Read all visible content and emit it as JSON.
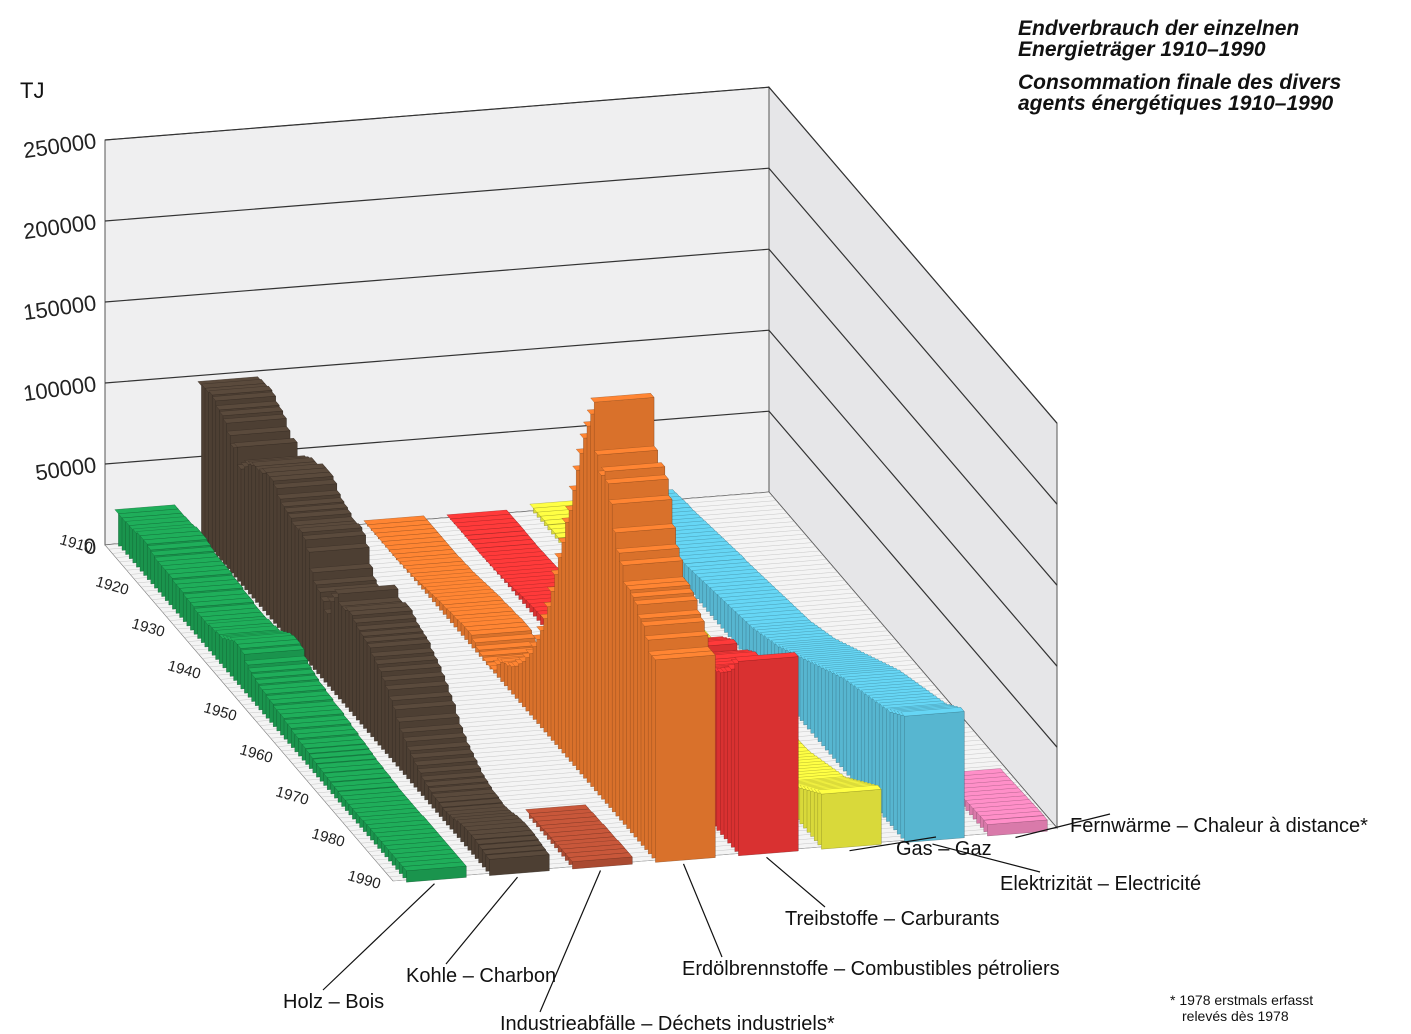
{
  "title": {
    "de_line1": "Endverbrauch der einzelnen",
    "de_line2": "Energieträger 1910–1990",
    "fr_line1": "Consommation finale des divers",
    "fr_line2": "agents énergétiques 1910–1990"
  },
  "footnote": {
    "line1": "* 1978 erstmals erfasst",
    "line2": "relevés dès 1978"
  },
  "chart_data": {
    "type": "bar",
    "variant": "3d-stacked-rows",
    "ylabel": "TJ",
    "ylim": [
      0,
      250000
    ],
    "yticks": [
      "0",
      "50000",
      "100000",
      "150000",
      "200000",
      "250000"
    ],
    "year_ticks": [
      "1910",
      "1920",
      "1930",
      "1940",
      "1950",
      "1960",
      "1970",
      "1980",
      "1990"
    ],
    "categories": [
      1910,
      1911,
      1912,
      1913,
      1914,
      1915,
      1916,
      1917,
      1918,
      1919,
      1920,
      1921,
      1922,
      1923,
      1924,
      1925,
      1926,
      1927,
      1928,
      1929,
      1930,
      1931,
      1932,
      1933,
      1934,
      1935,
      1936,
      1937,
      1938,
      1939,
      1940,
      1941,
      1942,
      1943,
      1944,
      1945,
      1946,
      1947,
      1948,
      1949,
      1950,
      1951,
      1952,
      1953,
      1954,
      1955,
      1956,
      1957,
      1958,
      1959,
      1960,
      1961,
      1962,
      1963,
      1964,
      1965,
      1966,
      1967,
      1968,
      1969,
      1970,
      1971,
      1972,
      1973,
      1974,
      1975,
      1976,
      1977,
      1978,
      1979,
      1980,
      1981,
      1982,
      1983,
      1984,
      1985,
      1986,
      1987,
      1988,
      1989,
      1990
    ],
    "grid": true,
    "series": [
      {
        "name": "Holz – Bois",
        "color": "#1fae5a",
        "values": [
          20000,
          20000,
          20000,
          20500,
          20500,
          21000,
          22000,
          22000,
          22000,
          21000,
          20000,
          19000,
          19000,
          19000,
          19000,
          19000,
          18000,
          18000,
          18000,
          17000,
          17000,
          17000,
          16000,
          16000,
          16000,
          16000,
          17000,
          17000,
          18000,
          18000,
          20000,
          22000,
          24000,
          25000,
          25000,
          24000,
          20000,
          18000,
          17000,
          16000,
          15000,
          15000,
          14000,
          14000,
          13000,
          13000,
          13000,
          12000,
          12000,
          11000,
          11000,
          10000,
          10000,
          9500,
          9000,
          8500,
          8000,
          8000,
          7500,
          7500,
          7000,
          7000,
          6500,
          6500,
          6500,
          6500,
          6500,
          6500,
          6500,
          7000,
          7000,
          7000,
          7000,
          7000,
          7000,
          7000,
          7000,
          7000,
          7000,
          7000,
          7000
        ]
      },
      {
        "name": "Kohle – Charbon",
        "color": "#5a4a3c",
        "values": [
          95000,
          96000,
          96000,
          97000,
          96000,
          93000,
          92000,
          90000,
          85000,
          80000,
          83000,
          72000,
          76000,
          80000,
          82000,
          84000,
          84000,
          85000,
          88000,
          88000,
          88000,
          86000,
          82000,
          80000,
          79000,
          78000,
          76000,
          76000,
          77000,
          75000,
          70000,
          60000,
          55000,
          53000,
          50000,
          45000,
          55000,
          60000,
          65000,
          60000,
          60000,
          62000,
          62000,
          60000,
          58000,
          57000,
          56000,
          55000,
          52000,
          50000,
          48000,
          45000,
          42000,
          38000,
          35000,
          30000,
          26000,
          23000,
          20000,
          18000,
          16000,
          14000,
          12000,
          11000,
          10000,
          9000,
          9000,
          8500,
          8000,
          8500,
          9000,
          10000,
          11000,
          11500,
          12000,
          12000,
          12000,
          11500,
          11000,
          10500,
          10000
        ]
      },
      {
        "name": "Industrieabfälle – Déchets industriels*",
        "color": "#c8573a",
        "values": [
          null,
          null,
          null,
          null,
          null,
          null,
          null,
          null,
          null,
          null,
          null,
          null,
          null,
          null,
          null,
          null,
          null,
          null,
          null,
          null,
          null,
          null,
          null,
          null,
          null,
          null,
          null,
          null,
          null,
          null,
          null,
          null,
          null,
          null,
          null,
          null,
          null,
          null,
          null,
          null,
          null,
          null,
          null,
          null,
          null,
          null,
          null,
          null,
          null,
          null,
          null,
          null,
          null,
          null,
          null,
          null,
          null,
          null,
          null,
          null,
          null,
          null,
          null,
          null,
          null,
          null,
          null,
          null,
          3000,
          3000,
          3500,
          3500,
          3500,
          4000,
          4000,
          4000,
          4000,
          4500,
          4500,
          4500,
          4500
        ]
      },
      {
        "name": "Erdölbrennstoffe – Combustibles pétroliers",
        "color": "#ff8533",
        "values": [
          1000,
          1000,
          1000,
          1000,
          1000,
          1000,
          1000,
          1000,
          1000,
          1000,
          1500,
          1500,
          2000,
          2000,
          2500,
          3000,
          3500,
          4000,
          4500,
          5000,
          5500,
          6000,
          6000,
          6500,
          7000,
          7000,
          7500,
          8000,
          8000,
          8000,
          6000,
          4000,
          3000,
          2000,
          1500,
          2000,
          8000,
          12000,
          14000,
          15000,
          17000,
          20000,
          24000,
          28000,
          33000,
          38000,
          45000,
          52000,
          60000,
          70000,
          80000,
          92000,
          105000,
          118000,
          130000,
          145000,
          155000,
          170000,
          185000,
          198000,
          210000,
          220000,
          230000,
          240000,
          210000,
          200000,
          205000,
          200000,
          190000,
          175000,
          165000,
          160000,
          150000,
          150000,
          148000,
          146000,
          140000,
          138000,
          132000,
          125000,
          125000
        ]
      },
      {
        "name": "Treibstoffe – Carburants",
        "color": "#ff3a3a",
        "values": [
          500,
          500,
          600,
          700,
          700,
          600,
          500,
          500,
          400,
          500,
          800,
          900,
          1100,
          1300,
          1600,
          2000,
          2400,
          2800,
          3200,
          3700,
          4200,
          4600,
          5000,
          5300,
          5600,
          5800,
          6000,
          6400,
          6800,
          7000,
          5000,
          3000,
          2500,
          2500,
          2500,
          3000,
          7000,
          10000,
          12000,
          13000,
          15000,
          17000,
          19000,
          21000,
          23000,
          25000,
          28000,
          30000,
          32000,
          35000,
          38000,
          42000,
          46000,
          50000,
          54000,
          58000,
          62000,
          66000,
          70000,
          74000,
          78000,
          80000,
          82000,
          84000,
          80000,
          82000,
          85000,
          88000,
          90000,
          92000,
          92000,
          93000,
          94000,
          96000,
          98000,
          100000,
          103000,
          106000,
          110000,
          116000,
          120000
        ]
      },
      {
        "name": "Gas – Gaz",
        "color": "#ffff44",
        "values": [
          3000,
          3100,
          3200,
          3300,
          3300,
          3000,
          3200,
          3000,
          2800,
          3000,
          3200,
          3300,
          3400,
          3500,
          3600,
          3800,
          4000,
          4100,
          4200,
          4300,
          4400,
          4500,
          4500,
          4500,
          4500,
          4500,
          4500,
          4500,
          4600,
          4600,
          4800,
          5000,
          5200,
          5200,
          5100,
          5000,
          5200,
          5300,
          5300,
          5200,
          5200,
          5200,
          5200,
          5200,
          5200,
          5100,
          5100,
          5100,
          5000,
          5000,
          5000,
          5000,
          5000,
          5000,
          5000,
          5000,
          5000,
          5000,
          5000,
          5200,
          5500,
          6000,
          7000,
          8000,
          9000,
          10000,
          11000,
          12000,
          13000,
          14000,
          15000,
          16000,
          18000,
          20000,
          22000,
          24000,
          26000,
          28000,
          30000,
          32000,
          34000
        ]
      },
      {
        "name": "Elektrizität – Electricité",
        "color": "#66d6f5",
        "values": [
          5000,
          5500,
          6000,
          6500,
          7000,
          7000,
          7500,
          8000,
          8500,
          9000,
          9500,
          10000,
          10500,
          11000,
          11500,
          12000,
          12500,
          13000,
          13500,
          14000,
          14000,
          14500,
          15000,
          15500,
          16000,
          16500,
          17000,
          17500,
          18000,
          18500,
          19000,
          19500,
          20000,
          20500,
          21000,
          21500,
          22000,
          22500,
          23000,
          24000,
          25000,
          26000,
          27000,
          28000,
          29000,
          30000,
          31500,
          33000,
          34500,
          36000,
          37500,
          39000,
          40500,
          42000,
          43500,
          45000,
          46500,
          48000,
          49500,
          51000,
          52500,
          54000,
          55500,
          57000,
          58000,
          59000,
          60000,
          61000,
          62000,
          63000,
          64000,
          65000,
          66000,
          67000,
          68000,
          69000,
          70000,
          72000,
          74000,
          76000,
          78000
        ]
      },
      {
        "name": "Fernwärme – Chaleur à distance*",
        "color": "#ff8fc8",
        "values": [
          null,
          null,
          null,
          null,
          null,
          null,
          null,
          null,
          null,
          null,
          null,
          null,
          null,
          null,
          null,
          null,
          null,
          null,
          null,
          null,
          null,
          null,
          null,
          null,
          null,
          null,
          null,
          null,
          null,
          null,
          null,
          null,
          null,
          null,
          null,
          null,
          null,
          null,
          null,
          null,
          null,
          null,
          null,
          null,
          null,
          null,
          null,
          null,
          null,
          null,
          null,
          null,
          null,
          null,
          null,
          null,
          null,
          null,
          null,
          null,
          null,
          null,
          null,
          null,
          null,
          null,
          null,
          null,
          5000,
          5200,
          5400,
          5600,
          5800,
          6000,
          6200,
          6400,
          6600,
          6800,
          7000,
          7200,
          7000
        ]
      }
    ]
  }
}
